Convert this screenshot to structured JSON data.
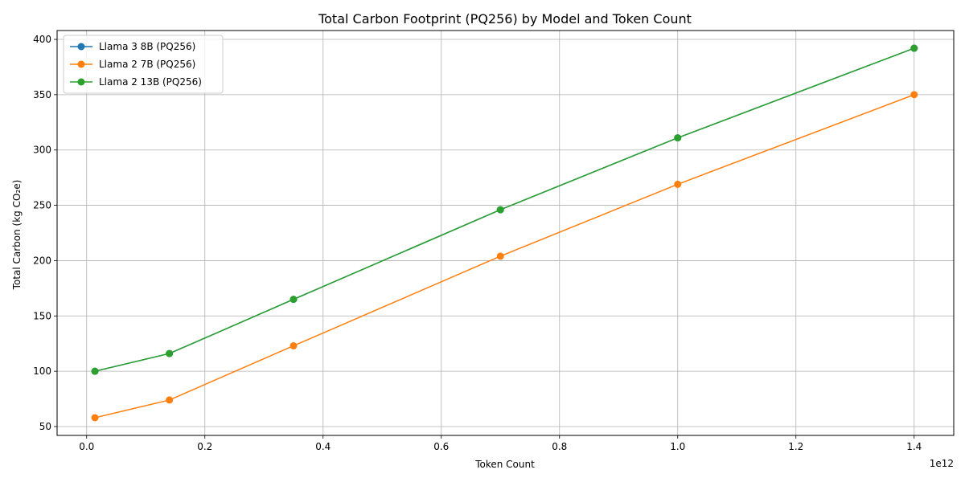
{
  "chart_data": {
    "type": "line",
    "title": "Total Carbon Footprint (PQ256) by Model and Token Count",
    "xlabel": "Token Count",
    "ylabel": "Total Carbon (kg CO₂e)",
    "x_offset_label": "1e12",
    "xlim": [
      -0.05,
      1.467
    ],
    "ylim": [
      42,
      408
    ],
    "xticks": [
      0.0,
      0.2,
      0.4,
      0.6,
      0.8,
      1.0,
      1.2,
      1.4
    ],
    "xtick_labels": [
      "0.0",
      "0.2",
      "0.4",
      "0.6",
      "0.8",
      "1.0",
      "1.2",
      "1.4"
    ],
    "yticks": [
      50,
      100,
      150,
      200,
      250,
      300,
      350,
      400
    ],
    "ytick_labels": [
      "50",
      "100",
      "150",
      "200",
      "250",
      "300",
      "350",
      "400"
    ],
    "grid": true,
    "legend_position": "top-left",
    "x": [
      0.014,
      0.14,
      0.35,
      0.7,
      1.0,
      1.4
    ],
    "series": [
      {
        "name": "Llama 3 8B (PQ256)",
        "color": "#1f77b4",
        "values": [
          100,
          116,
          165,
          246,
          311,
          392
        ]
      },
      {
        "name": "Llama 2 7B (PQ256)",
        "color": "#ff7f0e",
        "values": [
          58,
          74,
          123,
          204,
          269,
          350
        ]
      },
      {
        "name": "Llama 2 13B (PQ256)",
        "color": "#2ca02c",
        "values": [
          100,
          116,
          165,
          246,
          311,
          392
        ]
      }
    ]
  }
}
